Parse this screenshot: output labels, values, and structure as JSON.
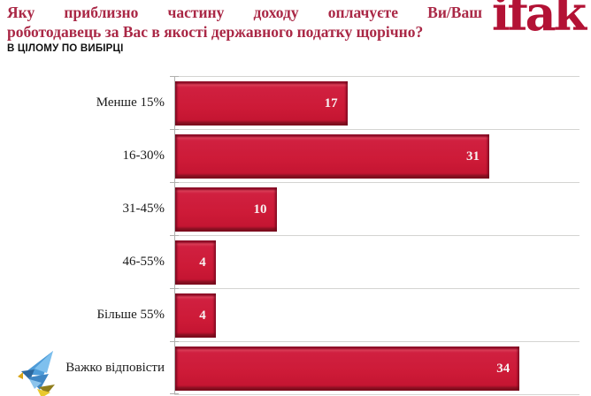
{
  "header": {
    "title_line1": "Яку приблизно частину доходу оплачуєте Ви/Ваш",
    "title_line2": "роботодавець за Вас в якості державного податку щорічно?",
    "subtitle": "В ЦІЛОМУ ПО ВИБІРЦІ",
    "logo_text": "ifak"
  },
  "icons": {
    "bird": "origami-dove-icon"
  },
  "colors": {
    "title_red": "#aa2846",
    "bar_red": "#cd1a37",
    "logo_red": "#b31235",
    "separator_gray": "#d4d4d2",
    "axis_gray": "#b0b0ae"
  },
  "chart_data": {
    "type": "bar",
    "orientation": "horizontal",
    "title": "Яку приблизно частину доходу оплачуєте Ви/Ваш роботодавець за Вас в якості державного податку щорічно?",
    "subtitle": "В ЦІЛОМУ ПО ВИБІРЦІ",
    "categories": [
      "Менше 15%",
      "16-30%",
      "31-45%",
      "46-55%",
      "Більше 55%",
      "Важко відповісти"
    ],
    "values": [
      17,
      31,
      10,
      4,
      4,
      34
    ],
    "xlabel": "",
    "ylabel": "",
    "xlim": [
      0,
      40
    ],
    "bar_color": "#cd1a37",
    "value_label_position": "inside-end",
    "grid": "horizontal row separators",
    "legend": "none"
  }
}
